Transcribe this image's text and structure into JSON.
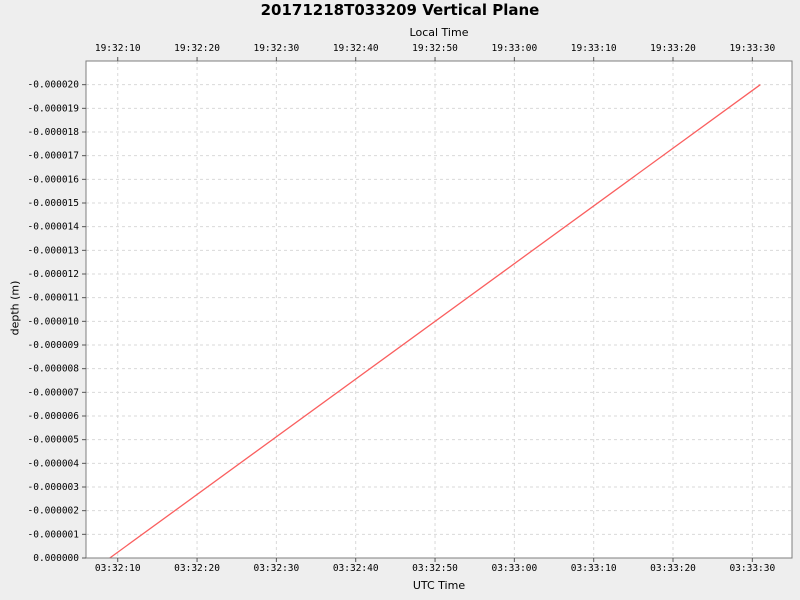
{
  "app": {
    "background_color": "#eeeeee"
  },
  "chart_data": {
    "type": "line",
    "title": "20171218T033209 Vertical Plane",
    "plot_background": "#ffffff",
    "border_color": "#7f7f7f",
    "tick_color": "#555555",
    "grid": {
      "visible": true,
      "style": "dashed",
      "color": "#d9d9d9"
    },
    "top_axis": {
      "label": "Local Time",
      "tick_labels": [
        "19:32:10",
        "19:32:20",
        "19:32:30",
        "19:32:40",
        "19:32:50",
        "19:33:00",
        "19:33:10",
        "19:33:20",
        "19:33:30"
      ]
    },
    "bottom_axis": {
      "label": "UTC Time",
      "tick_labels": [
        "03:32:10",
        "03:32:20",
        "03:32:30",
        "03:32:40",
        "03:32:50",
        "03:33:00",
        "03:33:10",
        "03:33:20",
        "03:33:30"
      ]
    },
    "x_axis": {
      "units": "seconds after 03:32:00 UTC",
      "domain": [
        6,
        95
      ],
      "tick_positions": [
        10,
        20,
        30,
        40,
        50,
        60,
        70,
        80,
        90
      ]
    },
    "y_axis": {
      "label": "depth (m)",
      "domain": {
        "top": -2.1e-05,
        "bottom": 0
      },
      "tick_values": [
        0,
        -1e-06,
        -2e-06,
        -3e-06,
        -4e-06,
        -5e-06,
        -6e-06,
        -7e-06,
        -8e-06,
        -9e-06,
        -1e-05,
        -1.1e-05,
        -1.2e-05,
        -1.3e-05,
        -1.4e-05,
        -1.5e-05,
        -1.6e-05,
        -1.7e-05,
        -1.8e-05,
        -1.9e-05,
        -2e-05
      ],
      "tick_labels": [
        "0.000000",
        "-0.000001",
        "-0.000002",
        "-0.000003",
        "-0.000004",
        "-0.000005",
        "-0.000006",
        "-0.000007",
        "-0.000008",
        "-0.000009",
        "-0.000010",
        "-0.000011",
        "-0.000012",
        "-0.000013",
        "-0.000014",
        "-0.000015",
        "-0.000016",
        "-0.000017",
        "-0.000018",
        "-0.000019",
        "-0.000020"
      ]
    },
    "series": [
      {
        "name": "depth",
        "color": "#fa5f5f",
        "points_t_seconds": [
          9,
          91
        ],
        "points_depth_m": [
          0,
          -2e-05
        ]
      }
    ]
  }
}
